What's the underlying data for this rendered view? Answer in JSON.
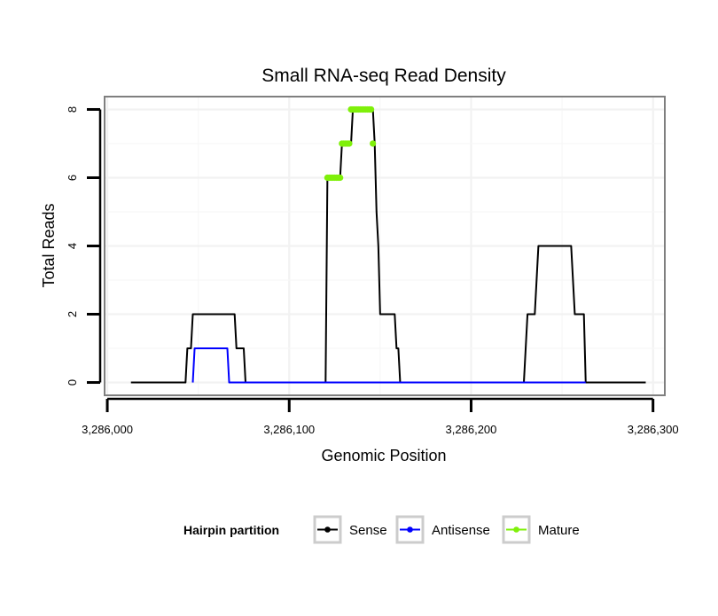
{
  "chart_data": {
    "type": "line",
    "title": "Small RNA-seq Read Density",
    "xlabel": "Genomic Position",
    "ylabel": "Total Reads",
    "xlim": [
      3285999,
      3286306
    ],
    "ylim": [
      -0.35,
      8.35
    ],
    "xticks": [
      3286000,
      3286100,
      3286200,
      3286300
    ],
    "xtick_labels": [
      "3,286,000",
      "3,286,100",
      "3,286,200",
      "3,286,300"
    ],
    "yticks": [
      0,
      2,
      4,
      6,
      8
    ],
    "ytick_labels": [
      "0",
      "2",
      "4",
      "6",
      "8"
    ],
    "grid": true,
    "legend_position": "bottom",
    "series": [
      {
        "name": "Sense",
        "color": "#000000",
        "points": [
          [
            3286013,
            0
          ],
          [
            3286043,
            0
          ],
          [
            3286044,
            1
          ],
          [
            3286046,
            1
          ],
          [
            3286047,
            2
          ],
          [
            3286070,
            2
          ],
          [
            3286071,
            1
          ],
          [
            3286075,
            1
          ],
          [
            3286076,
            0
          ],
          [
            3286120,
            0
          ],
          [
            3286121,
            6
          ],
          [
            3286128,
            6
          ],
          [
            3286129,
            7
          ],
          [
            3286134,
            7
          ],
          [
            3286135,
            8
          ],
          [
            3286146,
            8
          ],
          [
            3286147,
            7
          ],
          [
            3286148,
            5
          ],
          [
            3286149,
            4
          ],
          [
            3286150,
            2
          ],
          [
            3286158,
            2
          ],
          [
            3286159,
            1
          ],
          [
            3286160,
            1
          ],
          [
            3286161,
            0
          ],
          [
            3286229,
            0
          ],
          [
            3286231,
            2
          ],
          [
            3286235,
            2
          ],
          [
            3286237,
            4
          ],
          [
            3286255,
            4
          ],
          [
            3286257,
            2
          ],
          [
            3286262,
            2
          ],
          [
            3286263,
            0
          ],
          [
            3286296,
            0
          ]
        ]
      },
      {
        "name": "Antisense",
        "color": "#0000ff",
        "points": [
          [
            3286047,
            0
          ],
          [
            3286048,
            1
          ],
          [
            3286066,
            1
          ],
          [
            3286067,
            0
          ],
          [
            3286075,
            0
          ],
          [
            3286120,
            0
          ],
          [
            3286160,
            0
          ],
          [
            3286229,
            0
          ],
          [
            3286263,
            0
          ]
        ]
      },
      {
        "name": "Mature",
        "color": "#7ff00a",
        "points": [
          [
            3286121,
            6
          ],
          [
            3286122,
            6
          ],
          [
            3286123,
            6
          ],
          [
            3286124,
            6
          ],
          [
            3286125,
            6
          ],
          [
            3286126,
            6
          ],
          [
            3286127,
            6
          ],
          [
            3286128,
            6
          ],
          [
            3286129,
            7
          ],
          [
            3286130,
            7
          ],
          [
            3286131,
            7
          ],
          [
            3286132,
            7
          ],
          [
            3286133,
            7
          ],
          [
            3286134,
            8
          ],
          [
            3286135,
            8
          ],
          [
            3286136,
            8
          ],
          [
            3286137,
            8
          ],
          [
            3286138,
            8
          ],
          [
            3286139,
            8
          ],
          [
            3286140,
            8
          ],
          [
            3286141,
            8
          ],
          [
            3286142,
            8
          ],
          [
            3286143,
            8
          ],
          [
            3286144,
            8
          ],
          [
            3286145,
            8
          ],
          [
            3286146,
            7
          ]
        ]
      }
    ],
    "legend": {
      "title": "Hairpin partition",
      "entries": [
        "Sense",
        "Antisense",
        "Mature"
      ]
    }
  }
}
